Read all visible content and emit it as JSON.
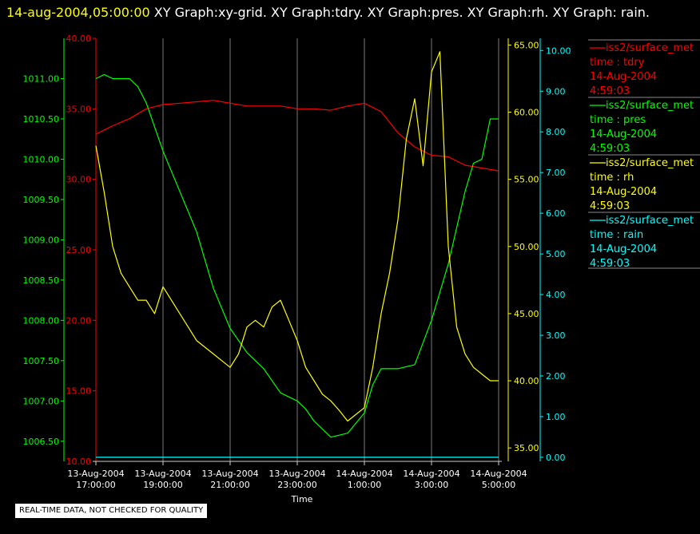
{
  "header": {
    "timestamp": "14-aug-2004,05:00:00",
    "graphs": "XY Graph:xy-grid.  XY Graph:tdry.  XY Graph:pres.  XY Graph:rh.  XY Graph: rain."
  },
  "notice": "REAL-TIME DATA, NOT CHECKED FOR QUALITY",
  "chart_data": {
    "type": "line",
    "xlabel": "Time",
    "x_tick_labels": [
      [
        "13-Aug-2004",
        "17:00:00"
      ],
      [
        "13-Aug-2004",
        "19:00:00"
      ],
      [
        "13-Aug-2004",
        "21:00:00"
      ],
      [
        "13-Aug-2004",
        "23:00:00"
      ],
      [
        "14-Aug-2004",
        "1:00:00"
      ],
      [
        "14-Aug-2004",
        "3:00:00"
      ],
      [
        "14-Aug-2004",
        "5:00:00"
      ]
    ],
    "x_range_hours": [
      0,
      12
    ],
    "grid": true,
    "legend_position": "right",
    "axes": {
      "pres": {
        "color": "#00ff00",
        "range": [
          1006.25,
          1011.5
        ],
        "ticks": [
          "1006.50",
          "1007.00",
          "1007.50",
          "1008.00",
          "1008.50",
          "1009.00",
          "1009.50",
          "1010.00",
          "1010.50",
          "1011.00"
        ]
      },
      "tdry": {
        "color": "#ff0000",
        "range": [
          10.0,
          40.0
        ],
        "ticks": [
          "10.00",
          "15.00",
          "20.00",
          "25.00",
          "30.00",
          "35.00",
          "40.00"
        ]
      },
      "rh": {
        "color": "#ffff00",
        "range": [
          34.0,
          65.5
        ],
        "ticks": [
          "35.00",
          "40.00",
          "45.00",
          "50.00",
          "55.00",
          "60.00",
          "65.00"
        ]
      },
      "rain": {
        "color": "#00ffff",
        "range": [
          -0.1,
          10.3
        ],
        "ticks": [
          "0.00",
          "1.00",
          "2.00",
          "3.00",
          "4.00",
          "5.00",
          "6.00",
          "7.00",
          "8.00",
          "9.00",
          "10.00"
        ]
      }
    },
    "series": [
      {
        "key": "tdry",
        "color": "#ff0000",
        "legend": [
          "iss2/surface_met",
          "time : tdry",
          "14-Aug-2004",
          "4:59:03"
        ],
        "x": [
          0,
          0.5,
          1,
          1.5,
          2,
          2.5,
          3,
          3.5,
          4,
          4.5,
          5,
          5.5,
          6,
          6.5,
          7,
          7.5,
          8,
          8.5,
          9,
          9.5,
          10,
          10.5,
          11,
          11.5,
          12
        ],
        "y": [
          33.2,
          33.8,
          34.3,
          35.0,
          35.3,
          35.4,
          35.5,
          35.6,
          35.4,
          35.2,
          35.2,
          35.2,
          35.0,
          35.0,
          34.9,
          35.2,
          35.4,
          34.8,
          33.3,
          32.3,
          31.7,
          31.6,
          31.0,
          30.8,
          30.6
        ]
      },
      {
        "key": "pres",
        "color": "#00ff00",
        "legend": [
          "iss2/surface_met",
          "time : pres",
          "14-Aug-2004",
          "4:59:03"
        ],
        "x": [
          0,
          0.25,
          0.5,
          1,
          1.25,
          1.5,
          2,
          2.5,
          3,
          3.5,
          4,
          4.5,
          5,
          5.5,
          6,
          6.25,
          6.5,
          7,
          7.5,
          8,
          8.25,
          8.5,
          9,
          9.5,
          10,
          10.5,
          11,
          11.25,
          11.5,
          11.75,
          12
        ],
        "y": [
          1011.0,
          1011.05,
          1011.0,
          1011.0,
          1010.9,
          1010.7,
          1010.1,
          1009.6,
          1009.1,
          1008.4,
          1007.9,
          1007.6,
          1007.4,
          1007.1,
          1007.0,
          1006.9,
          1006.75,
          1006.55,
          1006.6,
          1006.85,
          1007.2,
          1007.4,
          1007.4,
          1007.45,
          1008.0,
          1008.7,
          1009.6,
          1009.95,
          1010.0,
          1010.5,
          1010.5
        ]
      },
      {
        "key": "rh",
        "color": "#ffff00",
        "legend": [
          "iss2/surface_met",
          "time : rh",
          "14-Aug-2004",
          "4:59:03"
        ],
        "x": [
          0,
          0.25,
          0.5,
          0.75,
          1,
          1.25,
          1.5,
          1.75,
          2,
          2.25,
          2.5,
          2.75,
          3,
          3.25,
          3.5,
          3.75,
          4,
          4.25,
          4.5,
          4.75,
          5,
          5.25,
          5.5,
          5.75,
          6,
          6.25,
          6.5,
          6.75,
          7,
          7.25,
          7.5,
          7.75,
          8,
          8.25,
          8.5,
          8.75,
          9,
          9.25,
          9.5,
          9.75,
          10,
          10.25,
          10.5,
          10.75,
          11,
          11.25,
          11.5,
          11.75,
          12
        ],
        "y": [
          57.5,
          54.0,
          50.0,
          48.0,
          47.0,
          46.0,
          46.0,
          45.0,
          47.0,
          46.0,
          45.0,
          44.0,
          43.0,
          42.5,
          42.0,
          41.5,
          41.0,
          42.0,
          44.0,
          44.5,
          44.0,
          45.5,
          46.0,
          44.5,
          43.0,
          41.0,
          40.0,
          39.0,
          38.5,
          37.8,
          37.0,
          37.5,
          38.0,
          41.0,
          45.0,
          48.0,
          52.0,
          58.0,
          61.0,
          56.0,
          63.0,
          64.5,
          50.0,
          44.0,
          42.0,
          41.0,
          40.5,
          40.0,
          40.0
        ]
      },
      {
        "key": "rain",
        "color": "#00ffff",
        "legend": [
          "iss2/surface_met",
          "time : rain",
          "14-Aug-2004",
          "4:59:03"
        ],
        "x": [
          0,
          12
        ],
        "y": [
          0,
          0
        ]
      }
    ]
  }
}
